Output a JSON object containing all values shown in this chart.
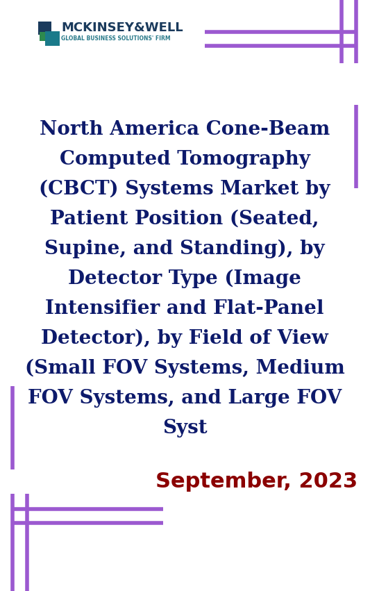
{
  "title_color": "#0d1a6b",
  "title_fontsize": 20,
  "date_text": "September, 2023",
  "date_color": "#8b0000",
  "date_fontsize": 22,
  "bg_color": "#ffffff",
  "purple_color": "#9b59d0",
  "line_width": 4,
  "logo_company": "MCKINSEY&WELL",
  "logo_tagline": "GLOBAL BUSINESS SOLUTIONS' FIRM",
  "logo_color_company": "#1a3a5c",
  "logo_color_tagline": "#2a7a8a",
  "title_lines": [
    "North America Cone-Beam",
    "Computed Tomography",
    "(CBCT) Systems Market by",
    "Patient Position (Seated,",
    "Supine, and Standing), by",
    "Detector Type (Image",
    "Intensifier and Flat-Panel",
    "Detector), by Field of View",
    "(Small FOV Systems, Medium",
    "FOV Systems, and Large FOV",
    "Syst"
  ]
}
